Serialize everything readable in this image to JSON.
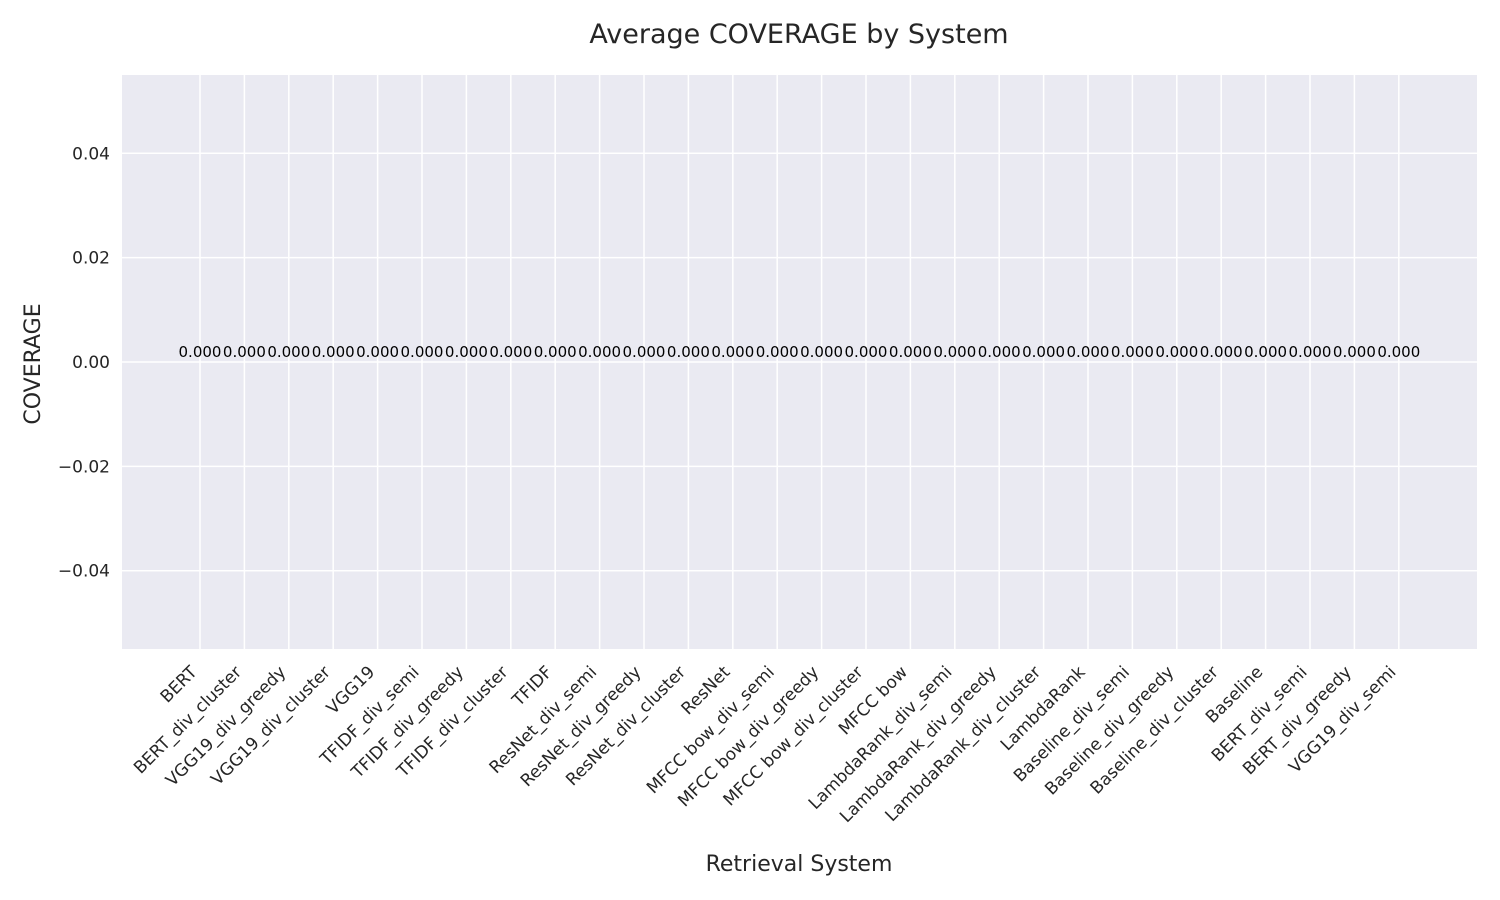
{
  "chart_data": {
    "type": "bar",
    "title": "Average COVERAGE by System",
    "xlabel": "Retrieval System",
    "ylabel": "COVERAGE",
    "ylim": [
      -0.055,
      0.055
    ],
    "y_ticks": [
      0.04,
      0.02,
      0.0,
      -0.02,
      -0.04
    ],
    "y_tick_labels": [
      "0.04",
      "0.02",
      "0.00",
      "−0.02",
      "−0.04"
    ],
    "grid": true,
    "legend": "none",
    "categories": [
      "BERT",
      "BERT_div_cluster",
      "VGG19_div_greedy",
      "VGG19_div_cluster",
      "VGG19",
      "TFIDF_div_semi",
      "TFIDF_div_greedy",
      "TFIDF_div_cluster",
      "TFIDF",
      "ResNet_div_semi",
      "ResNet_div_greedy",
      "ResNet_div_cluster",
      "ResNet",
      "MFCC bow_div_semi",
      "MFCC bow_div_greedy",
      "MFCC bow_div_cluster",
      "MFCC bow",
      "LambdaRank_div_semi",
      "LambdaRank_div_greedy",
      "LambdaRank_div_cluster",
      "LambdaRank",
      "Baseline_div_semi",
      "Baseline_div_greedy",
      "Baseline_div_cluster",
      "Baseline",
      "BERT_div_semi",
      "BERT_div_greedy",
      "VGG19_div_semi"
    ],
    "values": [
      0,
      0,
      0,
      0,
      0,
      0,
      0,
      0,
      0,
      0,
      0,
      0,
      0,
      0,
      0,
      0,
      0,
      0,
      0,
      0,
      0,
      0,
      0,
      0,
      0,
      0,
      0,
      0
    ],
    "data_labels": [
      "0.000",
      "0.000",
      "0.000",
      "0.000",
      "0.000",
      "0.000",
      "0.000",
      "0.000",
      "0.000",
      "0.000",
      "0.000",
      "0.000",
      "0.000",
      "0.000",
      "0.000",
      "0.000",
      "0.000",
      "0.000",
      "0.000",
      "0.000",
      "0.000",
      "0.000",
      "0.000",
      "0.000",
      "0.000",
      "0.000",
      "0.000",
      "0.000"
    ],
    "colors": {
      "plot_background": "#eaeaf2",
      "grid": "#ffffff",
      "text": "#262626",
      "data_label": "#000000"
    }
  }
}
